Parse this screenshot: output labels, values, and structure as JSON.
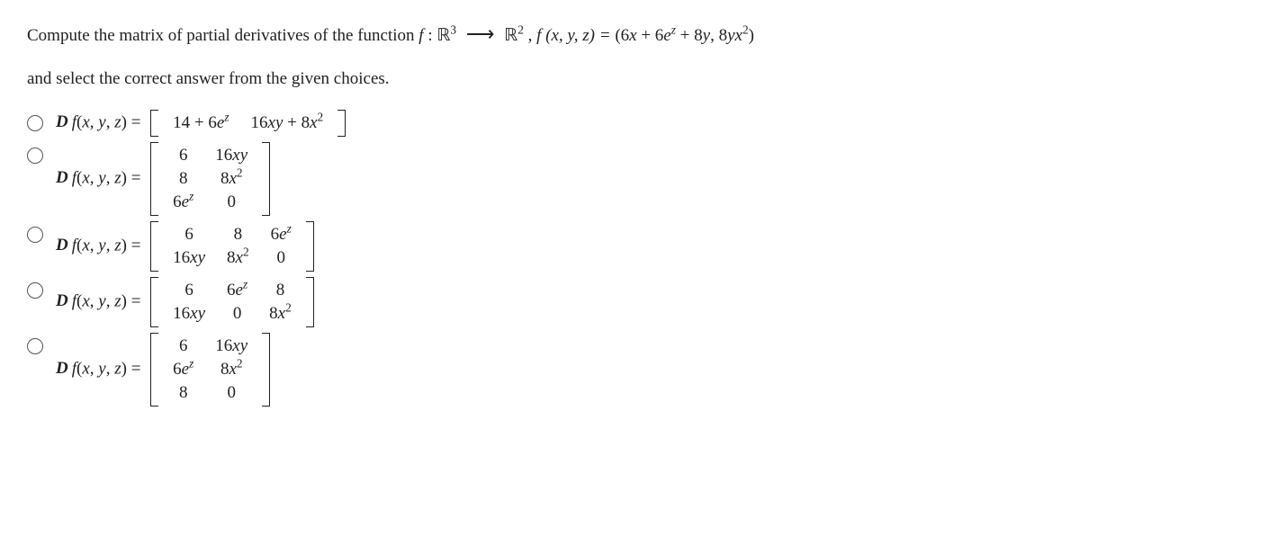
{
  "question": {
    "line1_prefix": "Compute the matrix of partial derivatives of the function ",
    "func_decl_f": "f",
    "colon": " : ",
    "domain": "ℝ",
    "domain_sup": "3",
    "arrow": "⟶",
    "codomain": "ℝ",
    "codomain_sup": "2",
    "comma": ", ",
    "f_lhs": "f (x, y, z) = ",
    "f_rhs": "(6x + 6e",
    "f_rhs_sup1": "z",
    "f_rhs_mid": " + 8y, 8yx",
    "f_rhs_sup2": "2",
    "f_rhs_close": ")",
    "line2": "and select the correct answer from the given choices."
  },
  "label": "Df(x, y, z) = ",
  "choices": [
    {
      "rows": [
        [
          "14 + 6e<sup>z</sup>",
          "16xy + 8x<sup>2</sup>"
        ]
      ]
    },
    {
      "rows": [
        [
          "6",
          "16xy"
        ],
        [
          "8",
          "8x<sup>2</sup>"
        ],
        [
          "6e<sup>z</sup>",
          "0"
        ]
      ]
    },
    {
      "rows": [
        [
          "6",
          "8",
          "6e<sup>z</sup>"
        ],
        [
          "16xy",
          "8x<sup>2</sup>",
          "0"
        ]
      ]
    },
    {
      "rows": [
        [
          "6",
          "6e<sup>z</sup>",
          "8"
        ],
        [
          "16xy",
          "0",
          "8x<sup>2</sup>"
        ]
      ]
    },
    {
      "rows": [
        [
          "6",
          "16xy"
        ],
        [
          "6e<sup>z</sup>",
          "8x<sup>2</sup>"
        ],
        [
          "8",
          "0"
        ]
      ]
    }
  ],
  "styling": {
    "text_color": "#222",
    "background": "#ffffff",
    "font_family": "Times New Roman",
    "font_size_pt": 15,
    "radio_border": "#555",
    "bracket_color": "#222"
  }
}
